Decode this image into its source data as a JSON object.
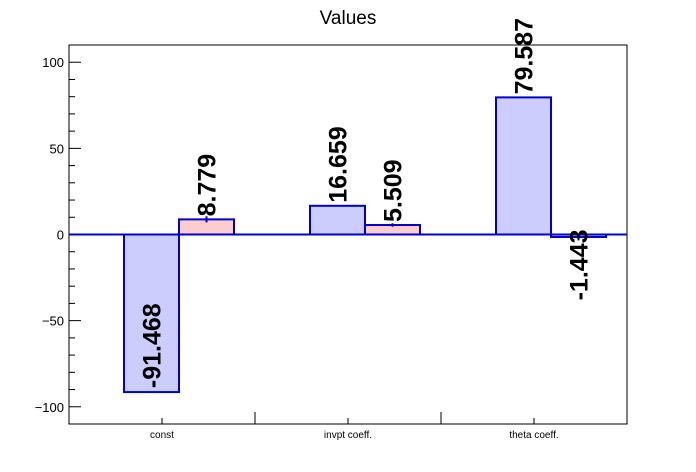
{
  "chart_data": {
    "type": "bar",
    "title": "Values",
    "xlabel": "",
    "ylabel": "",
    "categories": [
      "const",
      "invpt coeff.",
      "theta coeff."
    ],
    "series": [
      {
        "values": [
          -91.468,
          16.659,
          79.587
        ],
        "color": "#cccdfd",
        "edge": "#0000cc"
      },
      {
        "values": [
          8.779,
          5.509,
          -1.443
        ],
        "color": "#fdcccc",
        "edge": "#0000cc"
      }
    ],
    "value_labels": [
      [
        "-91.468",
        "16.659",
        "79.587"
      ],
      [
        "8.779",
        "5.509",
        "-1.443"
      ]
    ],
    "error_bars": [
      [
        0,
        0,
        0
      ],
      [
        1.8,
        1.0,
        2.0
      ]
    ],
    "ylim": [
      -110,
      110
    ],
    "yticks": [
      {
        "value": 100,
        "label": "100"
      },
      {
        "value": 50,
        "label": "50"
      },
      {
        "value": 0,
        "label": "0"
      },
      {
        "value": -50,
        "label": "−50"
      },
      {
        "value": -100,
        "label": "−100"
      }
    ],
    "grid": false,
    "legend": "none",
    "zero_line_color": "#0000cc"
  }
}
